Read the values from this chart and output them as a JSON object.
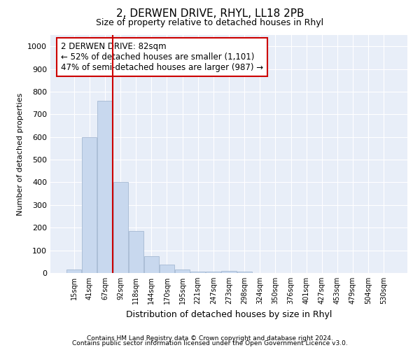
{
  "title": "2, DERWEN DRIVE, RHYL, LL18 2PB",
  "subtitle": "Size of property relative to detached houses in Rhyl",
  "xlabel": "Distribution of detached houses by size in Rhyl",
  "ylabel": "Number of detached properties",
  "bar_color": "#c8d8ee",
  "bar_edge_color": "#9ab0cc",
  "plot_bg_color": "#e8eef8",
  "fig_bg_color": "#ffffff",
  "grid_color": "#ffffff",
  "bins": [
    "15sqm",
    "41sqm",
    "67sqm",
    "92sqm",
    "118sqm",
    "144sqm",
    "170sqm",
    "195sqm",
    "221sqm",
    "247sqm",
    "273sqm",
    "298sqm",
    "324sqm",
    "350sqm",
    "376sqm",
    "401sqm",
    "427sqm",
    "453sqm",
    "479sqm",
    "504sqm",
    "530sqm"
  ],
  "values": [
    15,
    600,
    760,
    400,
    185,
    75,
    38,
    15,
    5,
    5,
    10,
    5,
    0,
    0,
    0,
    0,
    0,
    0,
    0,
    0,
    0
  ],
  "vline_color": "#cc0000",
  "vline_pos": 2.5,
  "annotation_text": "2 DERWEN DRIVE: 82sqm\n← 52% of detached houses are smaller (1,101)\n47% of semi-detached houses are larger (987) →",
  "annotation_box_edgecolor": "#cc0000",
  "ylim": [
    0,
    1050
  ],
  "yticks": [
    0,
    100,
    200,
    300,
    400,
    500,
    600,
    700,
    800,
    900,
    1000
  ],
  "footnote1": "Contains HM Land Registry data © Crown copyright and database right 2024.",
  "footnote2": "Contains public sector information licensed under the Open Government Licence v3.0."
}
